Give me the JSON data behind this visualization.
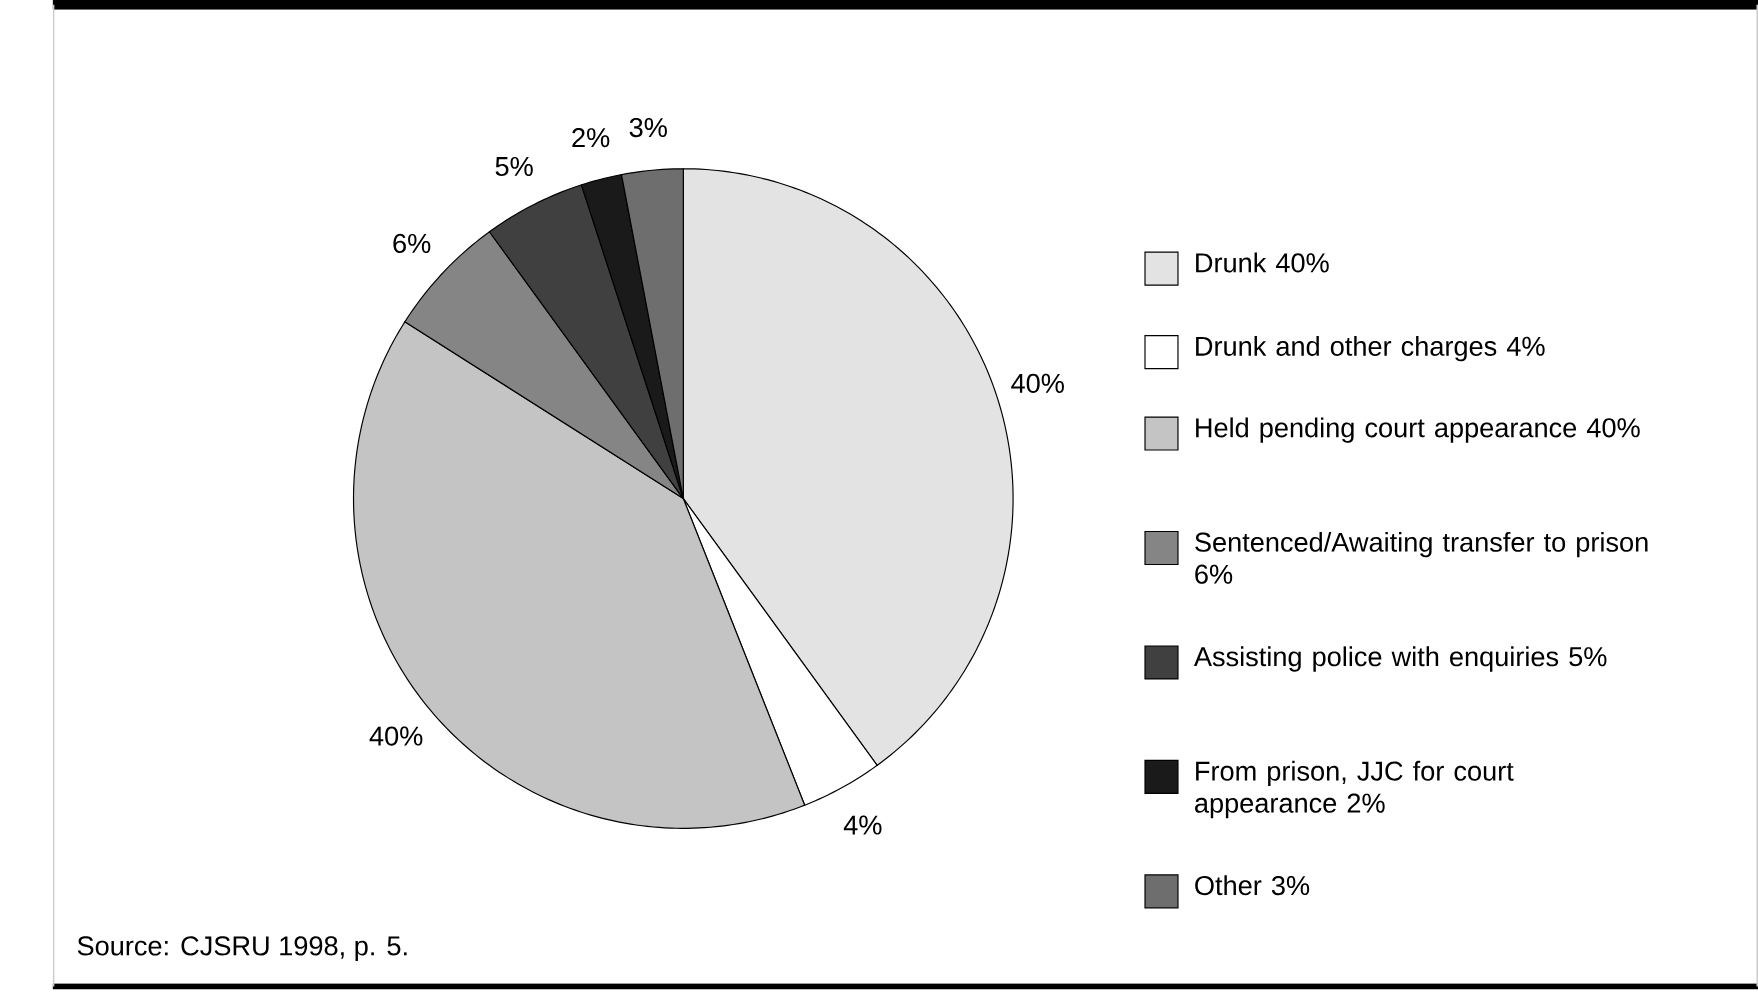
{
  "chart_data": {
    "type": "pie",
    "categories": [
      "Drunk 40%",
      "Drunk and other charges 4%",
      "Held pending court appearance 40%",
      "Sentenced/Awaiting transfer to prison 6%",
      "Assisting police with enquiries 5%",
      "From prison, JJC for court appearance 2%",
      "Other 3%"
    ],
    "values": [
      40,
      4,
      40,
      6,
      5,
      2,
      3
    ],
    "colors": [
      "#e3e3e3",
      "#ffffff",
      "#c4c4c4",
      "#858585",
      "#404040",
      "#1a1a1a",
      "#6e6e6e"
    ],
    "value_labels": [
      "40%",
      "4%",
      "40%",
      "6%",
      "5%",
      "2%",
      "3%"
    ],
    "legend": "right",
    "annotations": [
      "Source: CJSRU 1998,  p. 5."
    ]
  }
}
